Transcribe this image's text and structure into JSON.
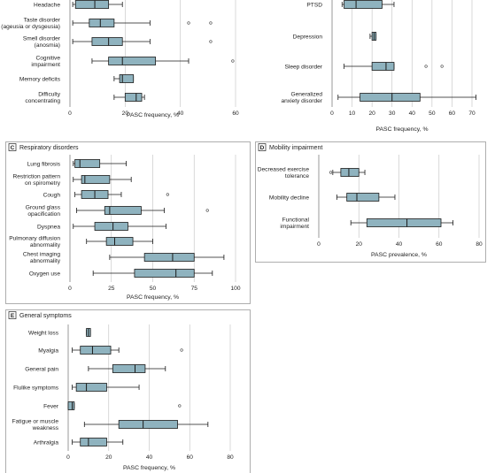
{
  "chart_data": [
    {
      "id": "A",
      "type": "box",
      "badge": "",
      "title": "",
      "xlabel": "PASC frequency, %",
      "xlim": [
        0,
        60
      ],
      "xticks": [
        0,
        20,
        40,
        60
      ],
      "boxes": [
        {
          "label": "Headache",
          "whisker_low": 1,
          "q1": 2,
          "median": 9,
          "q3": 14,
          "whisker_high": 19,
          "outliers": []
        },
        {
          "label": "Taste disorder\n(ageusia or dysgeusia)",
          "whisker_low": 1,
          "q1": 7,
          "median": 11,
          "q3": 16,
          "whisker_high": 29,
          "outliers": [
            43,
            51
          ]
        },
        {
          "label": "Smell disorder\n(anosmia)",
          "whisker_low": 1,
          "q1": 8,
          "median": 14,
          "q3": 19,
          "whisker_high": 29,
          "outliers": [
            51
          ]
        },
        {
          "label": "Cognitive\nimpairment",
          "whisker_low": 8,
          "q1": 14,
          "median": 19,
          "q3": 31,
          "whisker_high": 43,
          "outliers": [
            59
          ]
        },
        {
          "label": "Memory deficits",
          "whisker_low": 16,
          "q1": 18,
          "median": 19,
          "q3": 23,
          "whisker_high": 23,
          "outliers": []
        },
        {
          "label": "Difficulty\nconcentrating",
          "whisker_low": 16,
          "q1": 20,
          "median": 24,
          "q3": 26,
          "whisker_high": 27,
          "outliers": []
        }
      ]
    },
    {
      "id": "B",
      "type": "box",
      "badge": "",
      "title": "",
      "xlabel": "PASC frequency, %",
      "xlim": [
        0,
        70
      ],
      "xticks": [
        0,
        10,
        20,
        30,
        40,
        50,
        60,
        70
      ],
      "boxes": [
        {
          "label": "PTSD",
          "whisker_low": 5,
          "q1": 6,
          "median": 12,
          "q3": 25,
          "whisker_high": 31,
          "outliers": []
        },
        {
          "label": "Depression",
          "whisker_low": 19,
          "q1": 20,
          "median": 21,
          "q3": 22,
          "whisker_high": 22,
          "outliers": []
        },
        {
          "label": "Sleep disorder",
          "whisker_low": 6,
          "q1": 20,
          "median": 27,
          "q3": 31,
          "whisker_high": 31,
          "outliers": [
            47,
            55
          ]
        },
        {
          "label": "Generalized\nanxiety disorder",
          "whisker_low": 3,
          "q1": 14,
          "median": 30,
          "q3": 44,
          "whisker_high": 72,
          "outliers": []
        }
      ]
    },
    {
      "id": "C",
      "type": "box",
      "badge": "C",
      "title": "Respiratory disorders",
      "xlabel": "PASC frequency, %",
      "xlim": [
        0,
        100
      ],
      "xticks": [
        0,
        25,
        50,
        75,
        100
      ],
      "boxes": [
        {
          "label": "Lung fibrosis",
          "whisker_low": 2,
          "q1": 3,
          "median": 6,
          "q3": 18,
          "whisker_high": 34,
          "outliers": []
        },
        {
          "label": "Restriction pattern\non spirometry",
          "whisker_low": 2,
          "q1": 7,
          "median": 9,
          "q3": 24,
          "whisker_high": 37,
          "outliers": []
        },
        {
          "label": "Cough",
          "whisker_low": 3,
          "q1": 7,
          "median": 15,
          "q3": 23,
          "whisker_high": 31,
          "outliers": [
            59
          ]
        },
        {
          "label": "Ground glass\nopacification",
          "whisker_low": 4,
          "q1": 21,
          "median": 24,
          "q3": 43,
          "whisker_high": 57,
          "outliers": [
            83
          ]
        },
        {
          "label": "Dyspnea",
          "whisker_low": 2,
          "q1": 15,
          "median": 26,
          "q3": 35,
          "whisker_high": 58,
          "outliers": []
        },
        {
          "label": "Pulmonary diffusion\nabnormality",
          "whisker_low": 10,
          "q1": 22,
          "median": 27,
          "q3": 38,
          "whisker_high": 50,
          "outliers": []
        },
        {
          "label": "Chest imaging\nabnormality",
          "whisker_low": 24,
          "q1": 45,
          "median": 62,
          "q3": 75,
          "whisker_high": 93,
          "outliers": []
        },
        {
          "label": "Oxygen use",
          "whisker_low": 14,
          "q1": 39,
          "median": 64,
          "q3": 75,
          "whisker_high": 86,
          "outliers": []
        }
      ]
    },
    {
      "id": "D",
      "type": "box",
      "badge": "D",
      "title": "Mobility impairment",
      "xlabel": "PASC prevalence, %",
      "xlim": [
        0,
        80
      ],
      "xticks": [
        0,
        20,
        40,
        60,
        80
      ],
      "boxes": [
        {
          "label": "Decreased exercise\ntolerance",
          "whisker_low": 7,
          "q1": 11,
          "median": 15,
          "q3": 20,
          "whisker_high": 23,
          "outliers": [
            6
          ]
        },
        {
          "label": "Mobility decline",
          "whisker_low": 9,
          "q1": 14,
          "median": 19,
          "q3": 30,
          "whisker_high": 38,
          "outliers": []
        },
        {
          "label": "Functional\nimpairment",
          "whisker_low": 16,
          "q1": 24,
          "median": 44,
          "q3": 61,
          "whisker_high": 67,
          "outliers": []
        }
      ]
    },
    {
      "id": "E",
      "type": "box",
      "badge": "E",
      "title": "General symptoms",
      "xlabel": "PASC frequency, %",
      "xlim": [
        0,
        80
      ],
      "xticks": [
        0,
        20,
        40,
        60,
        80
      ],
      "boxes": [
        {
          "label": "Weight loss",
          "whisker_low": 9,
          "q1": 9,
          "median": 10,
          "q3": 11,
          "whisker_high": 11,
          "outliers": []
        },
        {
          "label": "Myalgia",
          "whisker_low": 2,
          "q1": 6,
          "median": 12,
          "q3": 21,
          "whisker_high": 25,
          "outliers": [
            56
          ]
        },
        {
          "label": "General pain",
          "whisker_low": 10,
          "q1": 22,
          "median": 33,
          "q3": 38,
          "whisker_high": 48,
          "outliers": []
        },
        {
          "label": "Flulike symptoms",
          "whisker_low": 2,
          "q1": 4,
          "median": 9,
          "q3": 19,
          "whisker_high": 35,
          "outliers": []
        },
        {
          "label": "Fever",
          "whisker_low": 0,
          "q1": 0,
          "median": 2,
          "q3": 3,
          "whisker_high": 3,
          "outliers": [
            55
          ]
        },
        {
          "label": "Fatigue or muscle\nweakness",
          "whisker_low": 8,
          "q1": 25,
          "median": 37,
          "q3": 54,
          "whisker_high": 69,
          "outliers": []
        },
        {
          "label": "Arthralgia",
          "whisker_low": 2,
          "q1": 6,
          "median": 10,
          "q3": 19,
          "whisker_high": 27,
          "outliers": []
        }
      ]
    }
  ],
  "colors": {
    "box_fill": "#8fb3bf",
    "box_stroke": "#1a1a1a",
    "grid": "#c9c9c9",
    "panel_border": "#9a9a9a"
  }
}
